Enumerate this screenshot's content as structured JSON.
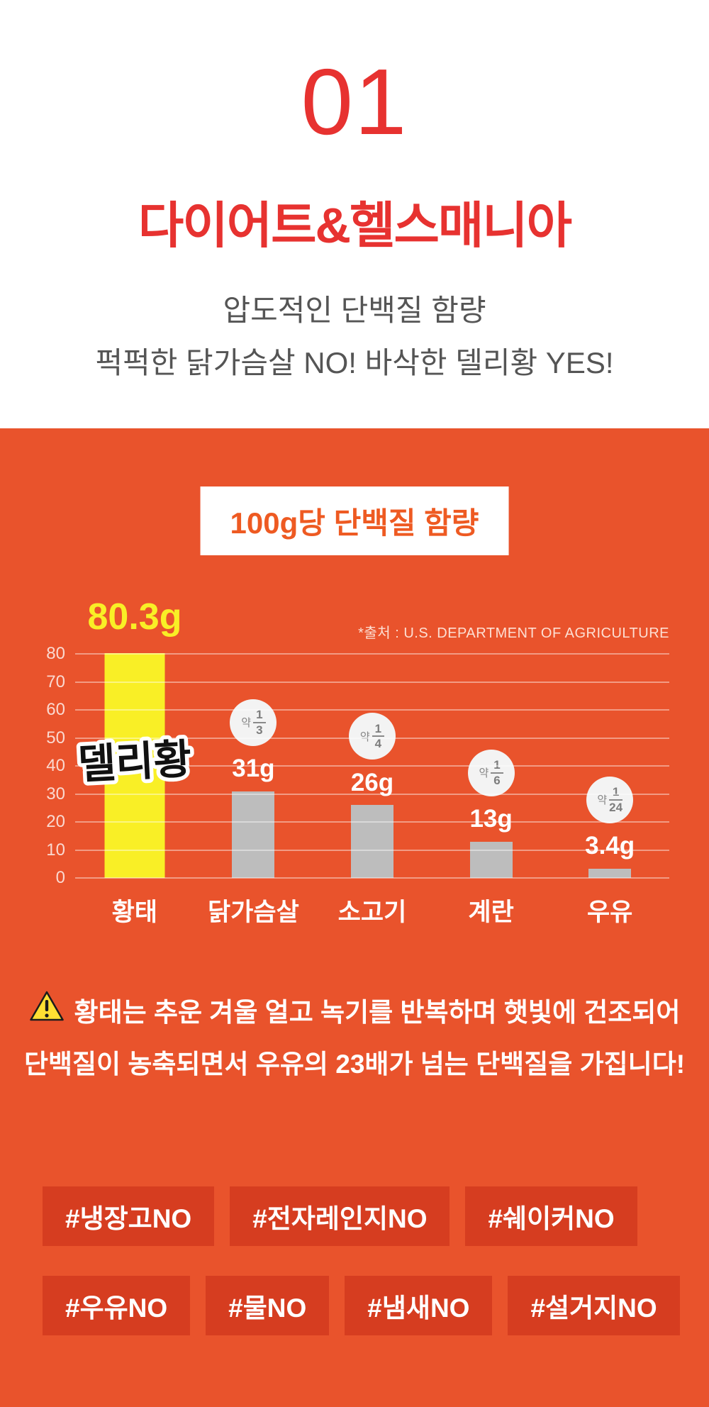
{
  "header": {
    "number": "01",
    "title": "다이어트&헬스매니아",
    "subtitle1": "압도적인 단백질 함량",
    "subtitle2": "퍽퍽한 닭가슴살 NO! 바삭한 델리황 YES!"
  },
  "chart_data": {
    "type": "bar",
    "title": "100g당 단백질 함량",
    "source_note": "*출처 : U.S. DEPARTMENT OF AGRICULTURE",
    "categories": [
      "황태",
      "닭가슴살",
      "소고기",
      "계란",
      "우유"
    ],
    "values": [
      80.3,
      31,
      26,
      13,
      3.4
    ],
    "value_labels": [
      "80.3g",
      "31g",
      "26g",
      "13g",
      "3.4g"
    ],
    "highlight_brand": "델리황",
    "fractions": [
      null,
      {
        "prefix": "약",
        "numerator": "1",
        "denominator": "3"
      },
      {
        "prefix": "약",
        "numerator": "1",
        "denominator": "4"
      },
      {
        "prefix": "약",
        "numerator": "1",
        "denominator": "6"
      },
      {
        "prefix": "약",
        "numerator": "1",
        "denominator": "24"
      }
    ],
    "ylim": [
      0,
      80
    ],
    "yticks": [
      0,
      10,
      20,
      30,
      40,
      50,
      60,
      70,
      80
    ],
    "grid": true,
    "legend": false,
    "bar_colors": [
      "#f9ef26",
      "#bdbdbd",
      "#bdbdbd",
      "#bdbdbd",
      "#bdbdbd"
    ]
  },
  "note": {
    "line1": "황태는 추운 겨울 얼고 녹기를 반복하며 햇빛에 건조되어",
    "line2": "단백질이 농축되면서 우유의 23배가 넘는 단백질을 가집니다!"
  },
  "hashtags": {
    "row1": [
      "#냉장고NO",
      "#전자레인지NO",
      "#쉐이커NO"
    ],
    "row2": [
      "#우유NO",
      "#물NO",
      "#냄새NO",
      "#설거지NO"
    ]
  },
  "colors": {
    "accent_red": "#e73230",
    "section_bg": "#e9532c",
    "tag_bg": "#d63d20",
    "highlight_yellow": "#f9ef26",
    "bar_gray": "#bdbdbd",
    "badge_text": "#ee5a22"
  }
}
